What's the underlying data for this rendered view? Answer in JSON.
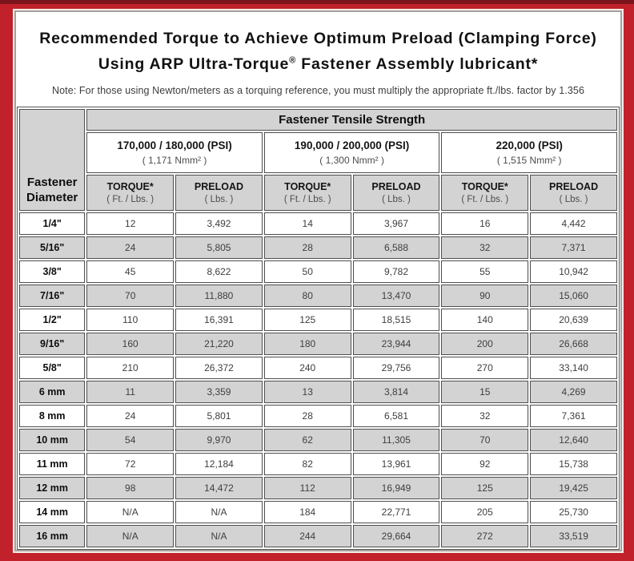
{
  "colors": {
    "frame_red": "#c1212a",
    "frame_top_strip": "#7c151b",
    "cell_border": "#4e4e50",
    "shaded_row_gray": "#d3d3d3"
  },
  "title": {
    "line1": "Recommended Torque to Achieve Optimum Preload (Clamping Force)",
    "line2_pre": "Using ARP Ultra-Torque",
    "line2_sup": "®",
    "line2_post": " Fastener Assembly lubricant*",
    "note": "Note: For those using Newton/meters as a torquing reference, you must multiply the appropriate ft./lbs. factor by 1.356"
  },
  "table": {
    "corner_header": {
      "line1": "Fastener",
      "line2": "Diameter"
    },
    "tensile_header": "Fastener Tensile Strength",
    "strength_groups": [
      {
        "psi": "170,000 / 180,000 (PSI)",
        "nmm": "( 1,171 Nmm² )"
      },
      {
        "psi": "190,000 / 200,000 (PSI)",
        "nmm": "( 1,300 Nmm² )"
      },
      {
        "psi": "220,000 (PSI)",
        "nmm": "( 1,515 Nmm² )"
      }
    ],
    "sub_headers": {
      "torque_label": "TORQUE*",
      "torque_unit": "( Ft. / Lbs. )",
      "preload_label": "PRELOAD",
      "preload_unit": "( Lbs. )"
    },
    "rows": [
      {
        "diameter": "1/4\"",
        "values": [
          "12",
          "3,492",
          "14",
          "3,967",
          "16",
          "4,442"
        ]
      },
      {
        "diameter": "5/16\"",
        "values": [
          "24",
          "5,805",
          "28",
          "6,588",
          "32",
          "7,371"
        ]
      },
      {
        "diameter": "3/8\"",
        "values": [
          "45",
          "8,622",
          "50",
          "9,782",
          "55",
          "10,942"
        ]
      },
      {
        "diameter": "7/16\"",
        "values": [
          "70",
          "11,880",
          "80",
          "13,470",
          "90",
          "15,060"
        ]
      },
      {
        "diameter": "1/2\"",
        "values": [
          "110",
          "16,391",
          "125",
          "18,515",
          "140",
          "20,639"
        ]
      },
      {
        "diameter": "9/16\"",
        "values": [
          "160",
          "21,220",
          "180",
          "23,944",
          "200",
          "26,668"
        ]
      },
      {
        "diameter": "5/8\"",
        "values": [
          "210",
          "26,372",
          "240",
          "29,756",
          "270",
          "33,140"
        ]
      },
      {
        "diameter": "6 mm",
        "values": [
          "11",
          "3,359",
          "13",
          "3,814",
          "15",
          "4,269"
        ]
      },
      {
        "diameter": "8 mm",
        "values": [
          "24",
          "5,801",
          "28",
          "6,581",
          "32",
          "7,361"
        ]
      },
      {
        "diameter": "10 mm",
        "values": [
          "54",
          "9,970",
          "62",
          "11,305",
          "70",
          "12,640"
        ]
      },
      {
        "diameter": "11 mm",
        "values": [
          "72",
          "12,184",
          "82",
          "13,961",
          "92",
          "15,738"
        ]
      },
      {
        "diameter": "12 mm",
        "values": [
          "98",
          "14,472",
          "112",
          "16,949",
          "125",
          "19,425"
        ]
      },
      {
        "diameter": "14 mm",
        "values": [
          "N/A",
          "N/A",
          "184",
          "22,771",
          "205",
          "25,730"
        ]
      },
      {
        "diameter": "16 mm",
        "values": [
          "N/A",
          "N/A",
          "244",
          "29,664",
          "272",
          "33,519"
        ]
      }
    ]
  }
}
